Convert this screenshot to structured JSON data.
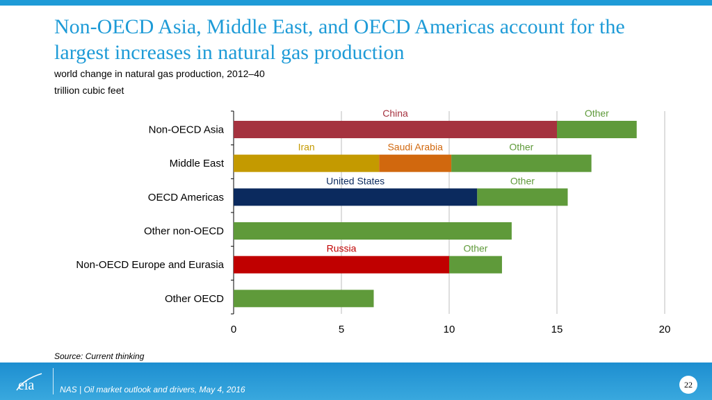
{
  "slide": {
    "title": "Non-OECD Asia, Middle East, and OECD Americas account for the largest increases in natural gas production",
    "subtitle": "world change in natural gas production, 2012–40",
    "units": "trillion cubic feet",
    "source": "Source:  Current thinking",
    "footer_text": "NAS | Oil market outlook and drivers, May 4, 2016",
    "page_number": "22",
    "logo_text": "eia"
  },
  "colors": {
    "accent": "#1e9bd7",
    "china": "#a5323f",
    "other": "#5f9a3a",
    "iran": "#c49a00",
    "saudi_arabia": "#d1680e",
    "united_states": "#0b2a5e",
    "russia": "#c00000"
  },
  "chart_data": {
    "type": "bar",
    "orientation": "horizontal",
    "stacked": true,
    "xlim": [
      0,
      20
    ],
    "xticks": [
      0,
      5,
      10,
      15,
      20
    ],
    "grid": true,
    "categories": [
      "Non-OECD Asia",
      "Middle East",
      "OECD Americas",
      "Other non-OECD",
      "Non-OECD Europe and Eurasia",
      "Other OECD"
    ],
    "rows": [
      {
        "category": "Non-OECD Asia",
        "segments": [
          {
            "label": "China",
            "value": 15.0,
            "color": "#a5323f",
            "label_color": "#a5323f"
          },
          {
            "label": "Other",
            "value": 3.7,
            "color": "#5f9a3a",
            "label_color": "#5f9a3a"
          }
        ]
      },
      {
        "category": "Middle East",
        "segments": [
          {
            "label": "Iran",
            "value": 6.75,
            "color": "#c49a00",
            "label_color": "#c49a00"
          },
          {
            "label": "Saudi Arabia",
            "value": 3.35,
            "color": "#d1680e",
            "label_color": "#d1680e"
          },
          {
            "label": "Other",
            "value": 6.5,
            "color": "#5f9a3a",
            "label_color": "#5f9a3a"
          }
        ]
      },
      {
        "category": "OECD Americas",
        "segments": [
          {
            "label": "United States",
            "value": 11.3,
            "color": "#0b2a5e",
            "label_color": "#0b2a5e"
          },
          {
            "label": "Other",
            "value": 4.2,
            "color": "#5f9a3a",
            "label_color": "#5f9a3a"
          }
        ]
      },
      {
        "category": "Other non-OECD",
        "segments": [
          {
            "label": "",
            "value": 12.9,
            "color": "#5f9a3a",
            "label_color": "#5f9a3a"
          }
        ]
      },
      {
        "category": "Non-OECD Europe and Eurasia",
        "segments": [
          {
            "label": "Russia",
            "value": 10.0,
            "color": "#c00000",
            "label_color": "#c00000"
          },
          {
            "label": "Other",
            "value": 2.45,
            "color": "#5f9a3a",
            "label_color": "#5f9a3a"
          }
        ]
      },
      {
        "category": "Other OECD",
        "segments": [
          {
            "label": "",
            "value": 6.5,
            "color": "#5f9a3a",
            "label_color": "#5f9a3a"
          }
        ]
      }
    ]
  }
}
